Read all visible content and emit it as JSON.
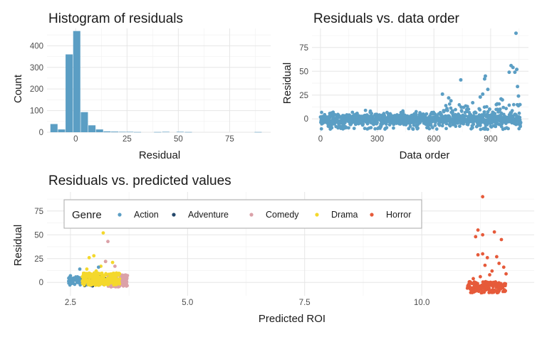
{
  "chart_data": [
    {
      "type": "bar",
      "title": "Histogram of residuals",
      "xlabel": "Residual",
      "ylabel": "Count",
      "xlim": [
        -14,
        95
      ],
      "ylim": [
        0,
        480
      ],
      "xticks": [
        0,
        25,
        50,
        75
      ],
      "yticks": [
        0,
        100,
        200,
        300,
        400
      ],
      "bar_color": "#5b9ec4",
      "bin_width": 3.7,
      "bins": [
        {
          "x": -10.5,
          "count": 38
        },
        {
          "x": -6.8,
          "count": 13
        },
        {
          "x": -3.1,
          "count": 360
        },
        {
          "x": 0.6,
          "count": 468
        },
        {
          "x": 4.3,
          "count": 93
        },
        {
          "x": 8.0,
          "count": 32
        },
        {
          "x": 11.7,
          "count": 13
        },
        {
          "x": 15.4,
          "count": 4
        },
        {
          "x": 19.1,
          "count": 3
        },
        {
          "x": 22.8,
          "count": 2
        },
        {
          "x": 26.5,
          "count": 2
        },
        {
          "x": 30.2,
          "count": 1
        },
        {
          "x": 40.0,
          "count": 1
        },
        {
          "x": 44.0,
          "count": 2
        },
        {
          "x": 51.0,
          "count": 2
        },
        {
          "x": 55.0,
          "count": 1
        },
        {
          "x": 89.0,
          "count": 1
        }
      ]
    },
    {
      "type": "scatter",
      "title": "Residuals vs. data order",
      "xlabel": "Data order",
      "ylabel": "Residual",
      "xlim": [
        -45,
        1100
      ],
      "ylim": [
        -14,
        95
      ],
      "xticks": [
        0,
        300,
        600,
        900
      ],
      "yticks": [
        0,
        25,
        50,
        75
      ],
      "point_color": "#5b9ec4",
      "highlights": [
        [
          645,
          26
        ],
        [
          678,
          22
        ],
        [
          742,
          41
        ],
        [
          805,
          17
        ],
        [
          845,
          23
        ],
        [
          858,
          26
        ],
        [
          868,
          42
        ],
        [
          872,
          45
        ],
        [
          885,
          31
        ],
        [
          955,
          21
        ],
        [
          962,
          20
        ],
        [
          998,
          49
        ],
        [
          1008,
          56
        ],
        [
          1018,
          54
        ],
        [
          1028,
          49
        ],
        [
          1034,
          90
        ],
        [
          1038,
          52
        ],
        [
          1042,
          34
        ],
        [
          1047,
          24
        ],
        [
          1055,
          15
        ],
        [
          690,
          19
        ],
        [
          930,
          15
        ]
      ]
    },
    {
      "type": "scatter",
      "title": "Residuals vs. predicted values",
      "xlabel": "Predicted ROI",
      "ylabel": "Residual",
      "xlim": [
        2.0,
        12.4
      ],
      "ylim": [
        -14,
        95
      ],
      "xticks": [
        2.5,
        5.0,
        7.5,
        10.0
      ],
      "yticks": [
        0,
        25,
        50,
        75
      ],
      "legend": {
        "title": "Genre",
        "position": "inside-top-left",
        "entries": [
          {
            "name": "Action",
            "color": "#5b9ec4"
          },
          {
            "name": "Adventure",
            "color": "#25486b"
          },
          {
            "name": "Comedy",
            "color": "#dba1a8"
          },
          {
            "name": "Drama",
            "color": "#f4d82c"
          },
          {
            "name": "Horror",
            "color": "#e65a3a"
          }
        ]
      },
      "clusters": [
        {
          "genre": "Action",
          "x": [
            2.45,
            3.05
          ],
          "y": [
            -3,
            6
          ],
          "n": 90
        },
        {
          "genre": "Adventure",
          "x": [
            2.75,
            3.3
          ],
          "y": [
            -4,
            7
          ],
          "n": 45
        },
        {
          "genre": "Comedy",
          "x": [
            3.3,
            3.72
          ],
          "y": [
            -5,
            8
          ],
          "n": 120
        },
        {
          "genre": "Drama",
          "x": [
            2.75,
            3.55
          ],
          "y": [
            -3,
            10
          ],
          "n": 260
        },
        {
          "genre": "Horror",
          "x": [
            10.95,
            11.8
          ],
          "y": [
            -11,
            1
          ],
          "n": 170
        }
      ],
      "highlights": [
        {
          "genre": "Drama",
          "points": [
            [
              3.2,
              52
            ],
            [
              2.9,
              26
            ],
            [
              3.0,
              28
            ],
            [
              3.4,
              21
            ],
            [
              3.15,
              17
            ],
            [
              3.25,
              22
            ],
            [
              2.85,
              14
            ],
            [
              3.05,
              12
            ]
          ]
        },
        {
          "genre": "Comedy",
          "points": [
            [
              3.3,
              43
            ],
            [
              3.25,
              22
            ],
            [
              3.45,
              17
            ]
          ]
        },
        {
          "genre": "Action",
          "points": [
            [
              2.5,
              7
            ],
            [
              2.7,
              14
            ],
            [
              3.1,
              16
            ]
          ]
        },
        {
          "genre": "Horror",
          "points": [
            [
              11.3,
              90
            ],
            [
              11.2,
              55
            ],
            [
              11.3,
              50
            ],
            [
              11.15,
              48
            ],
            [
              11.55,
              53
            ],
            [
              11.7,
              45
            ],
            [
              11.2,
              29
            ],
            [
              11.3,
              30
            ],
            [
              11.4,
              26
            ],
            [
              11.6,
              27
            ],
            [
              11.65,
              20
            ],
            [
              11.35,
              18
            ],
            [
              11.75,
              16
            ],
            [
              11.5,
              12
            ],
            [
              11.45,
              8
            ],
            [
              11.8,
              9
            ],
            [
              11.25,
              6
            ],
            [
              11.1,
              4
            ]
          ]
        }
      ]
    }
  ]
}
